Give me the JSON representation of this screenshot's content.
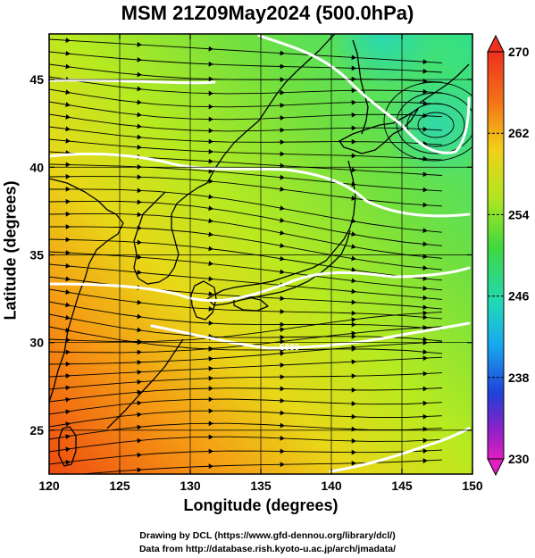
{
  "title": "MSM 21Z09May2024 (500.0hPa)",
  "xlabel": "Longitude (degrees)",
  "ylabel": "Latitude  (degrees)",
  "credit_line1": "Drawing by DCL (https://www.gfd-dennou.org/library/dcl/)",
  "credit_line2": "Data from http://database.rish.kyoto-u.ac.jp/arch/jmadata/",
  "contour_label": "5880",
  "x_ticks": [
    {
      "value": 120,
      "label": "120"
    },
    {
      "value": 125,
      "label": "125"
    },
    {
      "value": 130,
      "label": "130"
    },
    {
      "value": 135,
      "label": "135"
    },
    {
      "value": 140,
      "label": "140"
    },
    {
      "value": 145,
      "label": "145"
    },
    {
      "value": 150,
      "label": "150"
    }
  ],
  "y_ticks": [
    {
      "value": 25,
      "label": "25"
    },
    {
      "value": 30,
      "label": "30"
    },
    {
      "value": 35,
      "label": "35"
    },
    {
      "value": 40,
      "label": "40"
    },
    {
      "value": 45,
      "label": "45"
    }
  ],
  "colorbar_ticks": [
    {
      "value": 270,
      "label": "270"
    },
    {
      "value": 262,
      "label": "262"
    },
    {
      "value": 254,
      "label": "254"
    },
    {
      "value": 246,
      "label": "246"
    },
    {
      "value": 238,
      "label": "238"
    },
    {
      "value": 230,
      "label": "230"
    }
  ],
  "map_extent": {
    "lon": [
      120,
      150
    ],
    "lat": [
      22.5,
      47.6
    ]
  },
  "colorbar_range": [
    230,
    270
  ],
  "colors": {
    "warm": "#ee4a10",
    "mid": "#bbea1e",
    "cool": "#30e070",
    "coast": "#000000",
    "contour": "#ffffff"
  }
}
